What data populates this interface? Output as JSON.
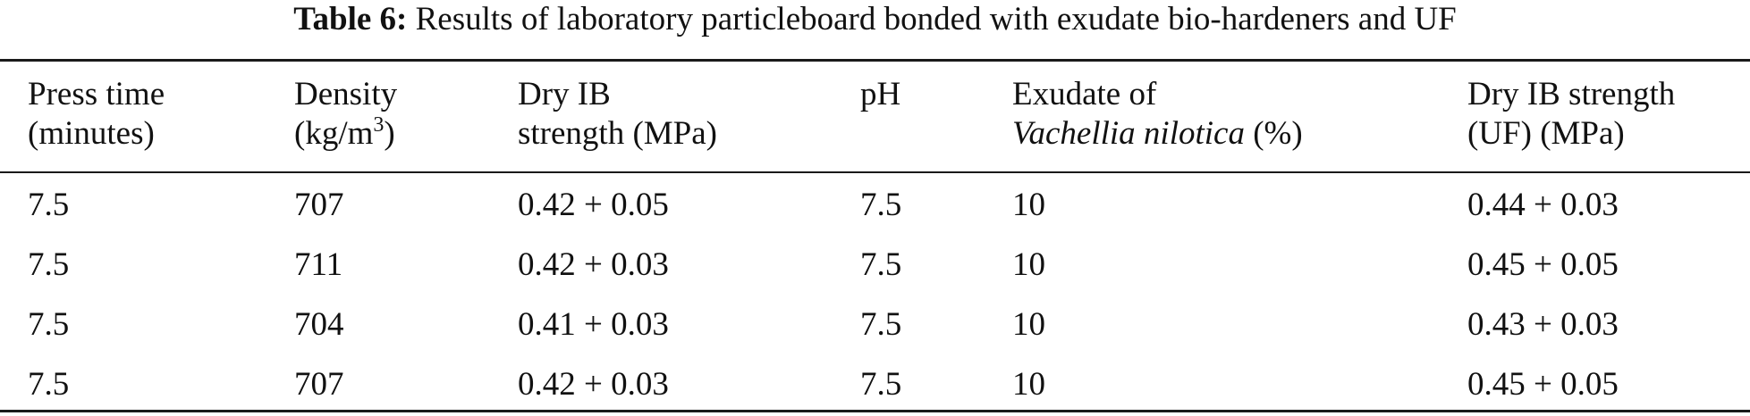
{
  "caption": {
    "label": "Table 6:",
    "title": "Results of laboratory particleboard bonded with exudate bio-hardeners and UF"
  },
  "columns": [
    {
      "line1": "Press time",
      "line2": "(minutes)"
    },
    {
      "line1": "Density",
      "line2_prefix": "(kg/m",
      "line2_sup": "3",
      "line2_suffix": ")"
    },
    {
      "line1": "Dry IB",
      "line2": "strength (MPa)"
    },
    {
      "line1": "pH"
    },
    {
      "line1": "Exudate of",
      "line2_italic": "Vachellia nilotica",
      "line2_suffix": " (%)"
    },
    {
      "line1": "Dry IB strength",
      "line2": "(UF) (MPa)"
    }
  ],
  "rows": [
    [
      "7.5",
      "707",
      "0.42 + 0.05",
      "7.5",
      "10",
      "0.44 + 0.03"
    ],
    [
      "7.5",
      "711",
      "0.42 + 0.03",
      "7.5",
      "10",
      "0.45 + 0.05"
    ],
    [
      "7.5",
      "704",
      "0.41 + 0.03",
      "7.5",
      "10",
      "0.43 + 0.03"
    ],
    [
      "7.5",
      "707",
      "0.42 + 0.03",
      "7.5",
      "10",
      "0.45 + 0.05"
    ]
  ]
}
